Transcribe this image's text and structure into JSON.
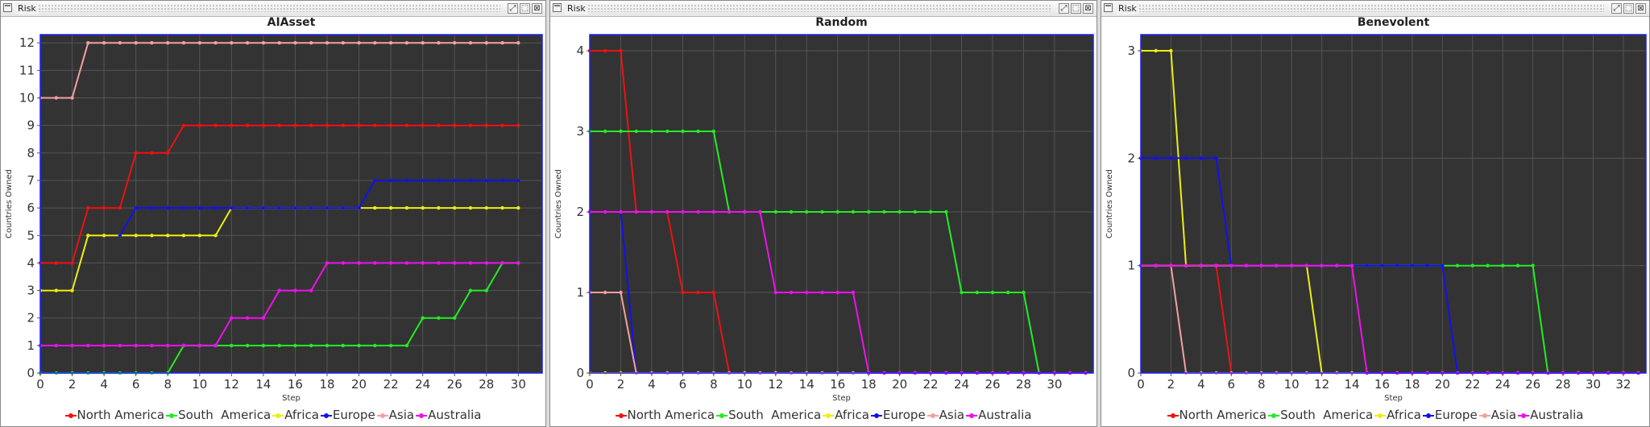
{
  "windows": [
    {
      "title": "Risk",
      "controls": [
        "⤢",
        "⬚",
        "⊠"
      ]
    },
    {
      "title": "Risk",
      "controls": [
        "⤢",
        "⬚",
        "⊠"
      ]
    },
    {
      "title": "Risk",
      "controls": [
        "⤢",
        "⬚",
        "⊠"
      ]
    }
  ],
  "colors": {
    "plot_background": "#333333",
    "grid": "#555555",
    "plot_border": "#1c1cff",
    "North America": "#ee1111",
    "South  America": "#22ee22",
    "Africa": "#eeee11",
    "Europe": "#1111ee",
    "Asia": "#f5a0a0",
    "Australia": "#ee11ee"
  },
  "chart_data": [
    {
      "type": "line",
      "title": "AIAsset",
      "xlabel": "Step",
      "ylabel": "Countries Owned",
      "xlim": [
        0,
        31.5
      ],
      "ylim": [
        0,
        12.3
      ],
      "xticks": [
        0,
        2,
        4,
        6,
        8,
        10,
        12,
        14,
        16,
        18,
        20,
        22,
        24,
        26,
        28,
        30
      ],
      "yticks": [
        0,
        1,
        2,
        3,
        4,
        5,
        6,
        7,
        8,
        9,
        10,
        11,
        12
      ],
      "grid": true,
      "legend_position": "bottom",
      "x": [
        0,
        1,
        2,
        3,
        4,
        5,
        6,
        7,
        8,
        9,
        10,
        11,
        12,
        13,
        14,
        15,
        16,
        17,
        18,
        19,
        20,
        21,
        22,
        23,
        24,
        25,
        26,
        27,
        28,
        29,
        30
      ],
      "series": [
        {
          "name": "North America",
          "values": [
            4,
            4,
            4,
            6,
            6,
            6,
            8,
            8,
            8,
            9,
            9,
            9,
            9,
            9,
            9,
            9,
            9,
            9,
            9,
            9,
            9,
            9,
            9,
            9,
            9,
            9,
            9,
            9,
            9,
            9,
            9
          ]
        },
        {
          "name": "South  America",
          "values": [
            0,
            0,
            0,
            0,
            0,
            0,
            0,
            0,
            0,
            1,
            1,
            1,
            1,
            1,
            1,
            1,
            1,
            1,
            1,
            1,
            1,
            1,
            1,
            1,
            2,
            2,
            2,
            3,
            3,
            4,
            4
          ]
        },
        {
          "name": "Africa",
          "values": [
            3,
            3,
            3,
            5,
            5,
            5,
            5,
            5,
            5,
            5,
            5,
            5,
            6,
            6,
            6,
            6,
            6,
            6,
            6,
            6,
            6,
            6,
            6,
            6,
            6,
            6,
            6,
            6,
            6,
            6,
            6
          ]
        },
        {
          "name": "Europe",
          "values": [
            null,
            null,
            null,
            null,
            null,
            5,
            6,
            6,
            6,
            6,
            6,
            6,
            6,
            6,
            6,
            6,
            6,
            6,
            6,
            6,
            6,
            7,
            7,
            7,
            7,
            7,
            7,
            7,
            7,
            7,
            7
          ]
        },
        {
          "name": "Asia",
          "values": [
            10,
            10,
            10,
            12,
            12,
            12,
            12,
            12,
            12,
            12,
            12,
            12,
            12,
            12,
            12,
            12,
            12,
            12,
            12,
            12,
            12,
            12,
            12,
            12,
            12,
            12,
            12,
            12,
            12,
            12,
            12
          ]
        },
        {
          "name": "Australia",
          "values": [
            1,
            1,
            1,
            1,
            1,
            1,
            1,
            1,
            1,
            1,
            1,
            1,
            2,
            2,
            2,
            3,
            3,
            3,
            4,
            4,
            4,
            4,
            4,
            4,
            4,
            4,
            4,
            4,
            4,
            4,
            4
          ]
        }
      ],
      "legend": [
        "North America",
        "South  America",
        "Africa",
        "Europe",
        "Asia",
        "Australia"
      ]
    },
    {
      "type": "line",
      "title": "Random",
      "xlabel": "Step",
      "ylabel": "Countries Owned",
      "xlim": [
        0,
        32.5
      ],
      "ylim": [
        0,
        4.2
      ],
      "xticks": [
        0,
        2,
        4,
        6,
        8,
        10,
        12,
        14,
        16,
        18,
        20,
        22,
        24,
        26,
        28,
        30
      ],
      "yticks": [
        0,
        1,
        2,
        3,
        4
      ],
      "grid": true,
      "legend_position": "bottom",
      "x": [
        0,
        1,
        2,
        3,
        4,
        5,
        6,
        7,
        8,
        9,
        10,
        11,
        12,
        13,
        14,
        15,
        16,
        17,
        18,
        19,
        20,
        21,
        22,
        23,
        24,
        25,
        26,
        27,
        28,
        29,
        30,
        31,
        32
      ],
      "series": [
        {
          "name": "North America",
          "values": [
            4,
            4,
            4,
            2,
            2,
            2,
            1,
            1,
            1,
            0,
            0,
            0,
            0,
            0,
            0,
            0,
            0,
            0,
            0,
            0,
            0,
            0,
            0,
            0,
            0,
            0,
            0,
            0,
            0,
            0,
            0,
            0,
            0
          ]
        },
        {
          "name": "South  America",
          "values": [
            3,
            3,
            3,
            3,
            3,
            3,
            3,
            3,
            3,
            2,
            2,
            2,
            2,
            2,
            2,
            2,
            2,
            2,
            2,
            2,
            2,
            2,
            2,
            2,
            1,
            1,
            1,
            1,
            1,
            0,
            0,
            0,
            0
          ]
        },
        {
          "name": "Africa",
          "values": [
            0,
            0,
            0,
            0,
            0,
            0,
            0,
            0,
            0,
            0,
            0,
            0,
            0,
            0,
            0,
            0,
            0,
            0,
            0,
            0,
            0,
            0,
            0,
            0,
            0,
            0,
            0,
            0,
            0,
            0,
            0,
            0,
            0
          ]
        },
        {
          "name": "Europe",
          "values": [
            2,
            2,
            2,
            0,
            0,
            0,
            0,
            0,
            0,
            0,
            0,
            0,
            0,
            0,
            0,
            0,
            0,
            0,
            0,
            0,
            0,
            0,
            0,
            0,
            0,
            0,
            0,
            0,
            0,
            0,
            0,
            0,
            0
          ]
        },
        {
          "name": "Asia",
          "values": [
            1,
            1,
            1,
            0,
            0,
            0,
            0,
            0,
            0,
            0,
            0,
            0,
            0,
            0,
            0,
            0,
            0,
            0,
            0,
            0,
            0,
            0,
            0,
            0,
            0,
            0,
            0,
            0,
            0,
            0,
            0,
            0,
            0
          ]
        },
        {
          "name": "Australia",
          "values": [
            2,
            2,
            2,
            2,
            2,
            2,
            2,
            2,
            2,
            2,
            2,
            2,
            1,
            1,
            1,
            1,
            1,
            1,
            0,
            0,
            0,
            0,
            0,
            0,
            0,
            0,
            0,
            0,
            0,
            0,
            0,
            0,
            0
          ]
        }
      ],
      "legend": [
        "North America",
        "South  America",
        "Africa",
        "Europe",
        "Asia",
        "Australia"
      ]
    },
    {
      "type": "line",
      "title": "Benevolent",
      "xlabel": "Step",
      "ylabel": "Countries Owned",
      "xlim": [
        0,
        33.5
      ],
      "ylim": [
        0,
        3.15
      ],
      "xticks": [
        0,
        2,
        4,
        6,
        8,
        10,
        12,
        14,
        16,
        18,
        20,
        22,
        24,
        26,
        28,
        30,
        32
      ],
      "yticks": [
        0,
        1,
        2,
        3
      ],
      "grid": true,
      "legend_position": "bottom",
      "x": [
        0,
        1,
        2,
        3,
        4,
        5,
        6,
        7,
        8,
        9,
        10,
        11,
        12,
        13,
        14,
        15,
        16,
        17,
        18,
        19,
        20,
        21,
        22,
        23,
        24,
        25,
        26,
        27,
        28,
        29,
        30,
        31,
        32,
        33
      ],
      "series": [
        {
          "name": "North America",
          "values": [
            1,
            1,
            1,
            1,
            1,
            1,
            0,
            0,
            0,
            0,
            0,
            0,
            0,
            0,
            0,
            0,
            0,
            0,
            0,
            0,
            0,
            0,
            0,
            0,
            0,
            0,
            0,
            0,
            0,
            0,
            0,
            0,
            0,
            0
          ]
        },
        {
          "name": "South  America",
          "values": [
            1,
            1,
            1,
            1,
            1,
            1,
            1,
            1,
            1,
            1,
            1,
            1,
            1,
            1,
            1,
            1,
            1,
            1,
            1,
            1,
            1,
            1,
            1,
            1,
            1,
            1,
            1,
            0,
            0,
            0,
            0,
            0,
            0,
            0
          ]
        },
        {
          "name": "Africa",
          "values": [
            3,
            3,
            3,
            1,
            1,
            1,
            1,
            1,
            1,
            1,
            1,
            1,
            0,
            0,
            0,
            0,
            0,
            0,
            0,
            0,
            0,
            0,
            0,
            0,
            0,
            0,
            0,
            0,
            0,
            0,
            0,
            0,
            0,
            0
          ]
        },
        {
          "name": "Europe",
          "values": [
            2,
            2,
            2,
            2,
            2,
            2,
            1,
            1,
            1,
            1,
            1,
            1,
            1,
            1,
            1,
            1,
            1,
            1,
            1,
            1,
            1,
            0,
            0,
            0,
            0,
            0,
            0,
            0,
            0,
            0,
            0,
            0,
            0,
            0
          ]
        },
        {
          "name": "Asia",
          "values": [
            1,
            1,
            1,
            0,
            0,
            0,
            0,
            0,
            0,
            0,
            0,
            0,
            0,
            0,
            0,
            0,
            0,
            0,
            0,
            0,
            0,
            0,
            0,
            0,
            0,
            0,
            0,
            0,
            0,
            0,
            0,
            0,
            0,
            0
          ]
        },
        {
          "name": "Australia",
          "values": [
            1,
            1,
            1,
            1,
            1,
            1,
            1,
            1,
            1,
            1,
            1,
            1,
            1,
            1,
            1,
            0,
            0,
            0,
            0,
            0,
            0,
            0,
            0,
            0,
            0,
            0,
            0,
            0,
            0,
            0,
            0,
            0,
            0,
            0
          ]
        }
      ],
      "legend": [
        "North America",
        "South  America",
        "Africa",
        "Europe",
        "Asia",
        "Australia"
      ]
    }
  ]
}
